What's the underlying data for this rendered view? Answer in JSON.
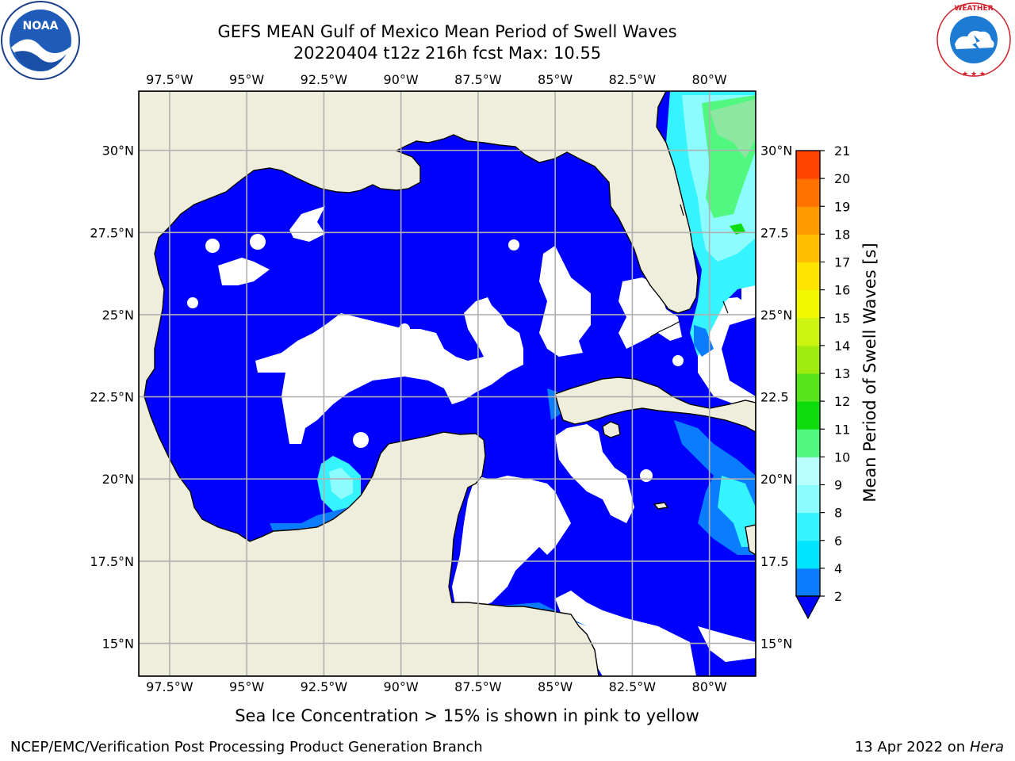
{
  "title": {
    "line1": "GEFS MEAN Gulf of Mexico Mean Period of Swell Waves",
    "line2": "20220404 t12z 216h fcst   Max: 10.55"
  },
  "map": {
    "projection": "plate-carree",
    "lon_range": [
      -98.5,
      -78.5
    ],
    "lat_range": [
      14.0,
      31.8
    ],
    "gridlines": true,
    "lon_ticks": [
      "97.5°W",
      "95°W",
      "92.5°W",
      "90°W",
      "87.5°W",
      "85°W",
      "82.5°W",
      "80°W"
    ],
    "lat_ticks": [
      "30°N",
      "27.5°N",
      "25°N",
      "22.5°N",
      "20°N",
      "17.5°N",
      "15°N"
    ],
    "lat_ticks_right": [
      "30°N",
      "27.5",
      "25°N",
      "22.5",
      "20°N",
      "17.5",
      "15°N"
    ],
    "land_color": "#efeedc",
    "ocean_color": "#0000ff",
    "missing_color": "#ffffff"
  },
  "colorbar": {
    "label": "Mean Period of Swell Waves [s]",
    "tick_labels": [
      "2",
      "4",
      "6",
      "8",
      "9",
      "10",
      "11",
      "12",
      "13",
      "14",
      "15",
      "16",
      "17",
      "18",
      "19",
      "20",
      "21"
    ],
    "colors": [
      "#0a7cff",
      "#00e4ff",
      "#36f4ff",
      "#8cfcff",
      "#b8ffff",
      "#50f880",
      "#0ddc0d",
      "#58e41c",
      "#a0ec10",
      "#ccf410",
      "#f0f800",
      "#ffe400",
      "#ffbe00",
      "#ff9a00",
      "#ff7200",
      "#ff4400",
      "#ff1400"
    ],
    "extend_color": "#0000ff"
  },
  "bottom_note": "Sea Ice Concentration > 15% is shown in pink to yellow",
  "credit_left": "NCEP/EMC/Verification Post Processing Product Generation Branch",
  "credit_right_prefix": "13 Apr 2022 on ",
  "credit_right_host": "Hera",
  "logos": {
    "left": "noaa-logo",
    "right": "nws-logo",
    "left_text": "NATIONAL OCEANIC AND ATMOSPHERIC ADMINISTRATION  U.S. DEPARTMENT OF COMMERCE",
    "right_text": "NATIONAL WEATHER SERVICE"
  }
}
